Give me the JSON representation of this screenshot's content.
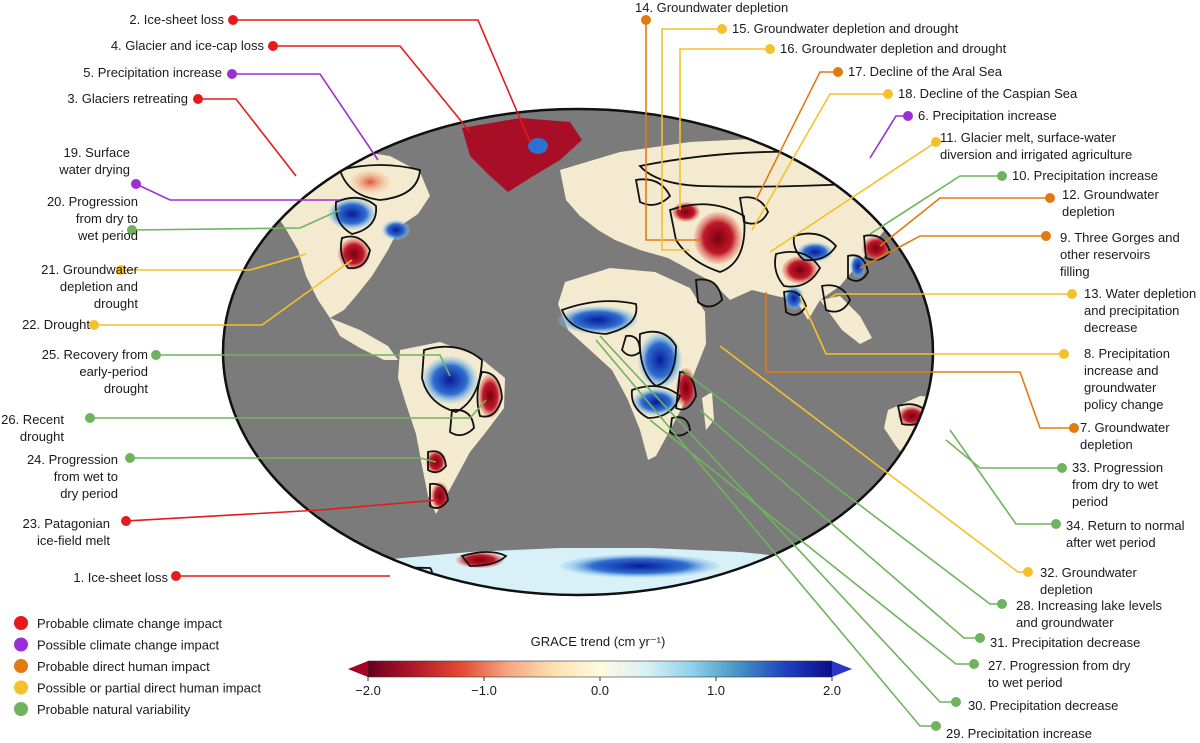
{
  "colors": {
    "climate_probable": "#e41a1c",
    "climate_possible": "#9b2fd6",
    "human_probable": "#e07b12",
    "human_possible": "#f5c12a",
    "natural": "#6fb35f",
    "ocean": "#7b7b7b",
    "land": "#f6ecd2",
    "contour": "#111111"
  },
  "legend": [
    {
      "label": "Probable climate change impact",
      "color_key": "climate_probable"
    },
    {
      "label": "Possible climate change impact",
      "color_key": "climate_possible"
    },
    {
      "label": "Probable direct human impact",
      "color_key": "human_probable"
    },
    {
      "label": "Possible or partial direct human impact",
      "color_key": "human_possible"
    },
    {
      "label": "Probable natural variability",
      "color_key": "natural"
    }
  ],
  "colorbar": {
    "title": "GRACE trend (cm yr⁻¹)",
    "ticks": [
      "−2.0",
      "−1.0",
      "0.0",
      "1.0",
      "2.0"
    ],
    "min": -2.0,
    "max": 2.0,
    "stops": [
      "#67001f",
      "#b2182b",
      "#e34a33",
      "#f4a582",
      "#fde0b0",
      "#fffbe0",
      "#d9f0f5",
      "#8fd0ea",
      "#4393c3",
      "#2040c0",
      "#0b0b8a"
    ],
    "end_arrow_left": "#a50026",
    "end_arrow_right": "#2b35c8"
  },
  "annotations": [
    {
      "id": 2,
      "lines": [
        "2. Ice-sheet loss"
      ],
      "color_key": "climate_probable"
    },
    {
      "id": 4,
      "lines": [
        "4. Glacier and ice-cap loss"
      ],
      "color_key": "climate_probable"
    },
    {
      "id": 5,
      "lines": [
        "5. Precipitation increase"
      ],
      "color_key": "climate_possible"
    },
    {
      "id": 3,
      "lines": [
        "3. Glaciers retreating"
      ],
      "color_key": "climate_probable"
    },
    {
      "id": 19,
      "lines": [
        "19. Surface",
        "water drying"
      ],
      "color_key": "climate_possible"
    },
    {
      "id": 20,
      "lines": [
        "20. Progression",
        "from dry to",
        "wet period"
      ],
      "color_key": "natural"
    },
    {
      "id": 21,
      "lines": [
        "21. Groundwater",
        "depletion and",
        "drought"
      ],
      "color_key": "human_possible"
    },
    {
      "id": 22,
      "lines": [
        "22. Drought"
      ],
      "color_key": "human_possible"
    },
    {
      "id": 25,
      "lines": [
        "25. Recovery from",
        "early-period",
        "drought"
      ],
      "color_key": "natural"
    },
    {
      "id": 26,
      "lines": [
        "26. Recent",
        "drought"
      ],
      "color_key": "natural"
    },
    {
      "id": 24,
      "lines": [
        "24. Progression",
        "from wet to",
        "dry period"
      ],
      "color_key": "natural"
    },
    {
      "id": 23,
      "lines": [
        "23. Patagonian",
        "ice-field melt"
      ],
      "color_key": "climate_probable"
    },
    {
      "id": 1,
      "lines": [
        "1. Ice-sheet loss"
      ],
      "color_key": "climate_probable"
    },
    {
      "id": 14,
      "lines": [
        "14. Groundwater depletion"
      ],
      "color_key": "human_probable"
    },
    {
      "id": 15,
      "lines": [
        "15. Groundwater depletion and drought"
      ],
      "color_key": "human_possible"
    },
    {
      "id": 16,
      "lines": [
        "16. Groundwater depletion and drought"
      ],
      "color_key": "human_possible"
    },
    {
      "id": 17,
      "lines": [
        "17. Decline of the Aral Sea"
      ],
      "color_key": "human_probable"
    },
    {
      "id": 18,
      "lines": [
        "18. Decline of the Caspian Sea"
      ],
      "color_key": "human_possible"
    },
    {
      "id": 6,
      "lines": [
        "6. Precipitation increase"
      ],
      "color_key": "climate_possible"
    },
    {
      "id": 11,
      "lines": [
        "11. Glacier melt, surface-water",
        "diversion and irrigated agriculture"
      ],
      "color_key": "human_possible"
    },
    {
      "id": 10,
      "lines": [
        "10. Precipitation increase"
      ],
      "color_key": "natural"
    },
    {
      "id": 12,
      "lines": [
        "12. Groundwater",
        "depletion"
      ],
      "color_key": "human_probable"
    },
    {
      "id": 9,
      "lines": [
        "9. Three Gorges and",
        "other reservoirs",
        "filling"
      ],
      "color_key": "human_probable"
    },
    {
      "id": 13,
      "lines": [
        "13. Water depletion",
        "and precipitation",
        "decrease"
      ],
      "color_key": "human_possible"
    },
    {
      "id": 8,
      "lines": [
        "8. Precipitation",
        "increase and",
        "groundwater",
        "policy change"
      ],
      "color_key": "human_possible"
    },
    {
      "id": 7,
      "lines": [
        "7. Groundwater",
        "depletion"
      ],
      "color_key": "human_probable"
    },
    {
      "id": 33,
      "lines": [
        "33. Progression",
        "from dry to wet",
        "period"
      ],
      "color_key": "natural"
    },
    {
      "id": 34,
      "lines": [
        "34. Return to normal",
        "after wet period"
      ],
      "color_key": "natural"
    },
    {
      "id": 32,
      "lines": [
        "32. Groundwater",
        "depletion"
      ],
      "color_key": "human_possible"
    },
    {
      "id": 28,
      "lines": [
        "28. Increasing lake levels",
        "and groundwater"
      ],
      "color_key": "natural"
    },
    {
      "id": 31,
      "lines": [
        "31. Precipitation decrease"
      ],
      "color_key": "natural"
    },
    {
      "id": 27,
      "lines": [
        "27. Progression from dry",
        "to wet period"
      ],
      "color_key": "natural"
    },
    {
      "id": 30,
      "lines": [
        "30. Precipitation decrease"
      ],
      "color_key": "natural"
    },
    {
      "id": 29,
      "lines": [
        "29. Precipitation increase"
      ],
      "color_key": "natural"
    }
  ]
}
